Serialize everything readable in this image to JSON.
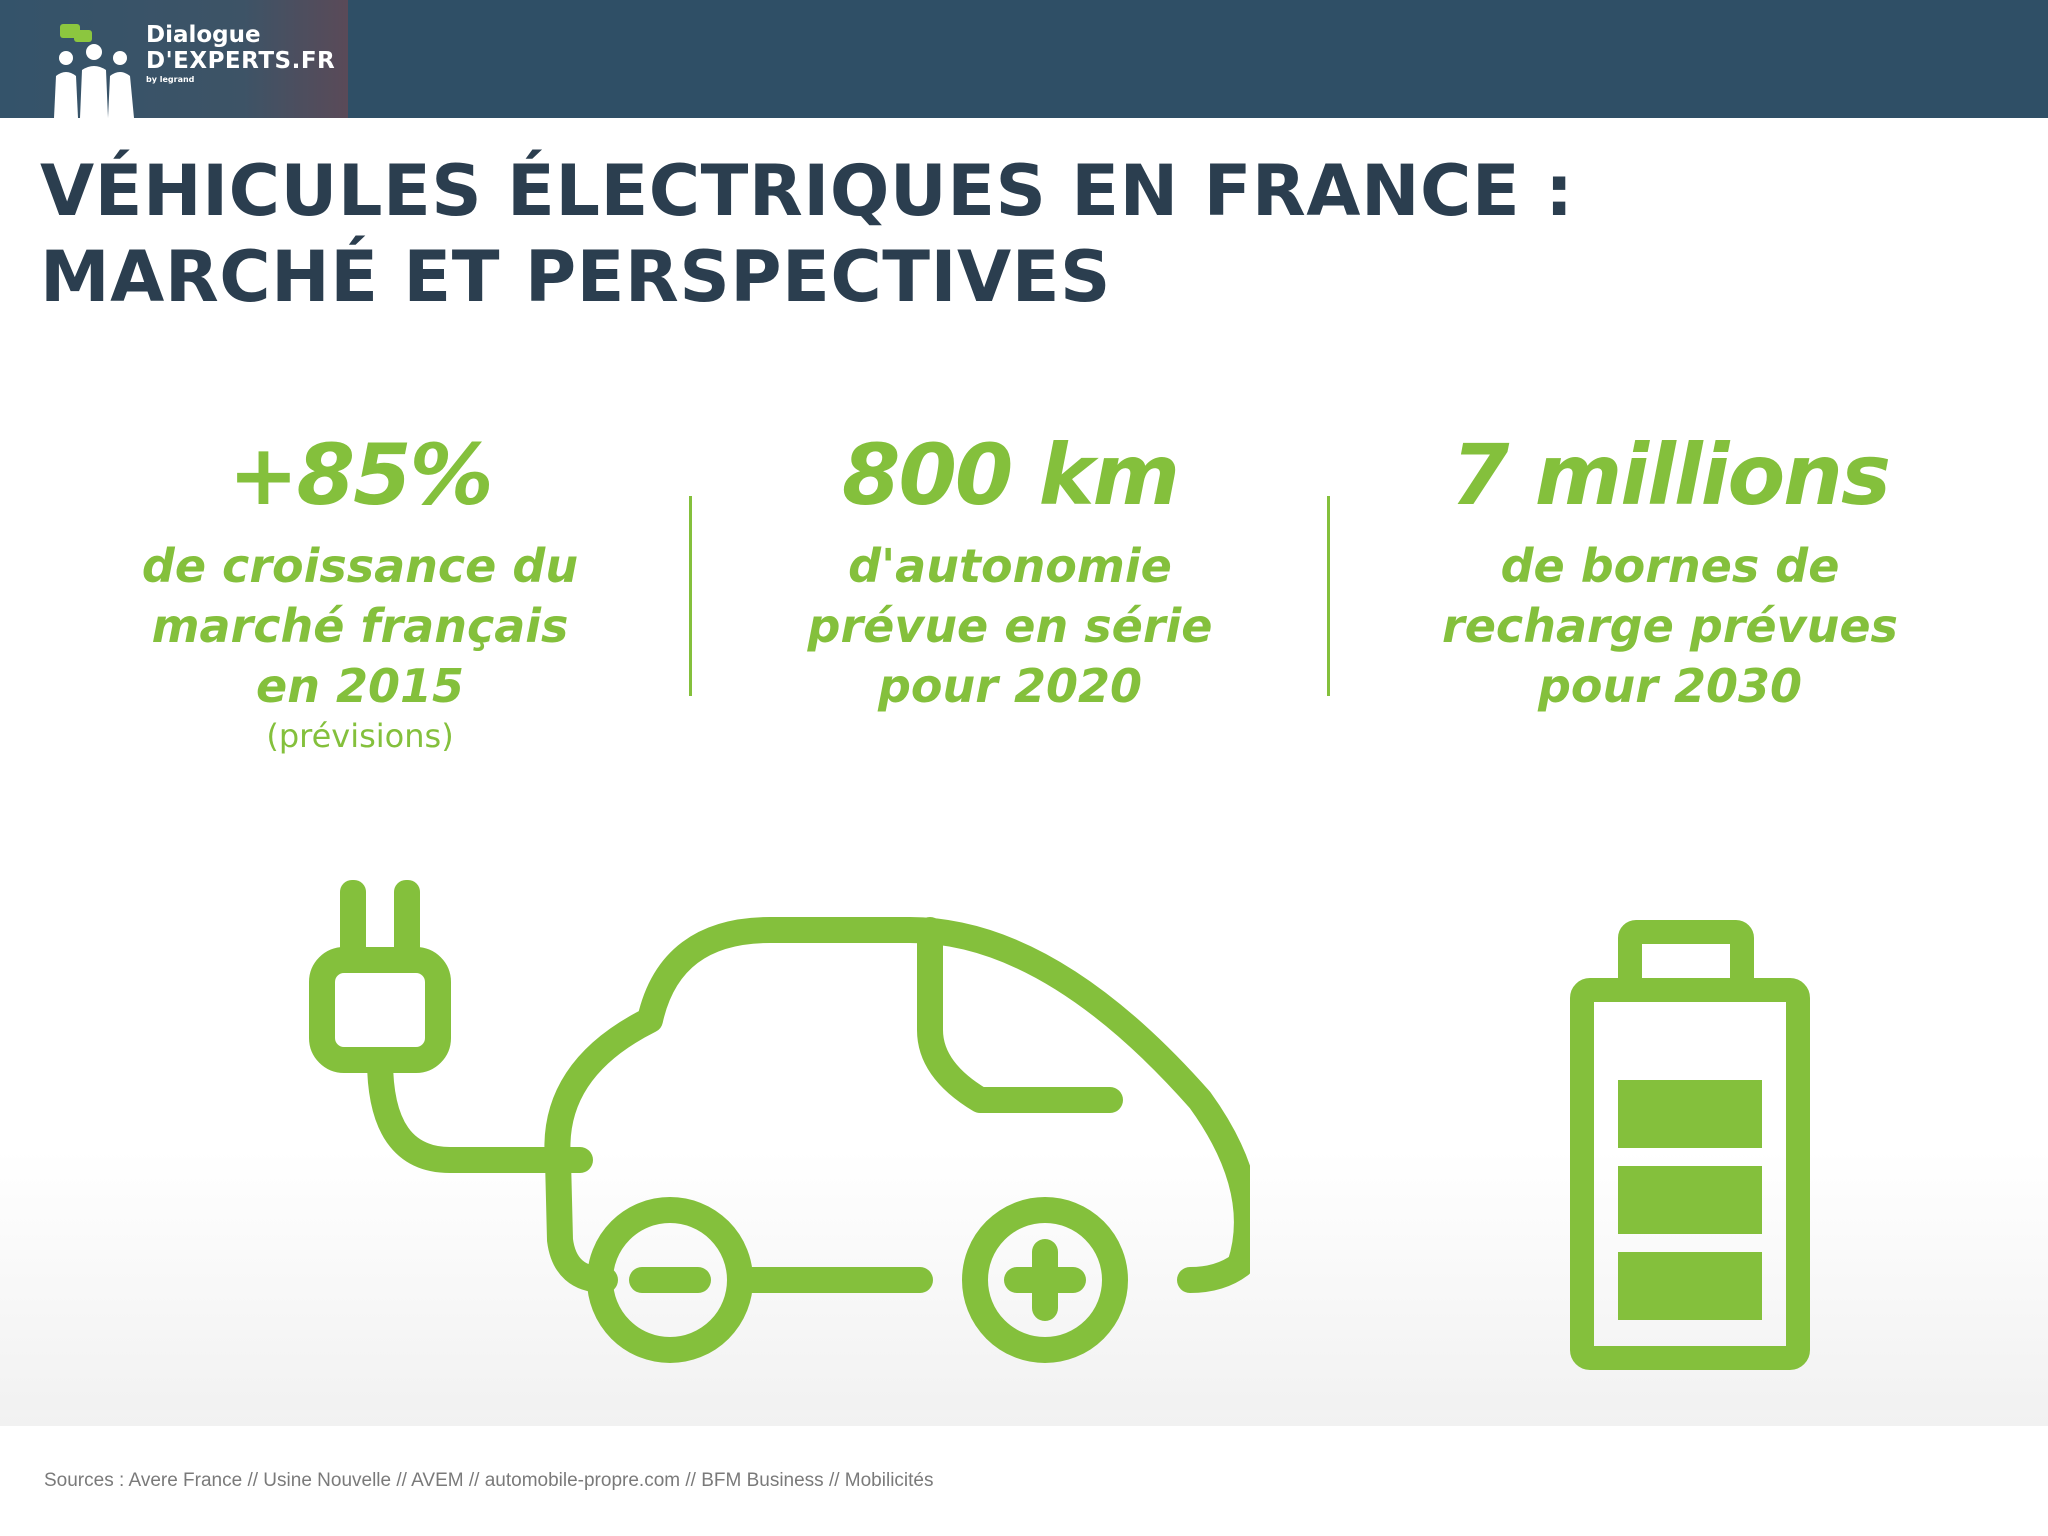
{
  "brand": {
    "line1": "Dialogue",
    "line2": "D'EXPERTS.FR",
    "line3": "by legrand"
  },
  "title": {
    "line1": "VÉHICULES ÉLECTRIQUES EN FRANCE :",
    "line2": "MARCHÉ ET PERSPECTIVES"
  },
  "stats": [
    {
      "value": "+85%",
      "desc_lines": [
        "de croissance du",
        "marché français",
        "en 2015"
      ],
      "note": "(prévisions)"
    },
    {
      "value": "800 km",
      "desc_lines": [
        "d'autonomie",
        "prévue en série",
        "pour 2020"
      ]
    },
    {
      "value": "7 millions",
      "desc_lines": [
        "de bornes de",
        "recharge prévues",
        "pour 2030"
      ]
    }
  ],
  "icons": [
    "electric-car-icon",
    "plug-icon",
    "battery-icon"
  ],
  "colors": {
    "accent": "#84c03c",
    "header": "#2f4f66",
    "title": "#2b3e4f"
  },
  "sources": "Sources : Avere France // Usine Nouvelle // AVEM // automobile-propre.com // BFM Business // Mobilicités"
}
